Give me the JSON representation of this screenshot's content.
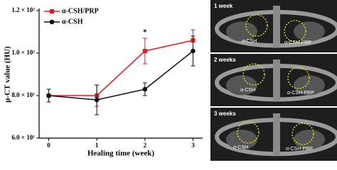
{
  "chart_data": {
    "type": "line",
    "xlabel": "Healing time (week)",
    "ylabel": "μ-CT value (HU)",
    "x": [
      0,
      1,
      2,
      3
    ],
    "xlim": [
      -0.2,
      3.2
    ],
    "xticks": [
      0,
      1,
      2,
      3
    ],
    "ylim": [
      60,
      120
    ],
    "yticks": [
      {
        "value": 60,
        "label": "6.0 × 10¹"
      },
      {
        "value": 80,
        "label": "8.0 × 10¹"
      },
      {
        "value": 100,
        "label": "1.0 × 10²"
      },
      {
        "value": 120,
        "label": "1.2 × 10²"
      }
    ],
    "series": [
      {
        "name": "α-CSH/PRP",
        "color": "#e8141c",
        "marker": "square",
        "values": [
          80,
          80,
          101,
          106
        ],
        "errors": [
          3,
          5,
          6,
          5
        ]
      },
      {
        "name": "α-CSH",
        "color": "#111111",
        "marker": "circle",
        "values": [
          80,
          78,
          83,
          101
        ],
        "errors": [
          3,
          7,
          3,
          7
        ]
      }
    ],
    "annotations": [
      "*"
    ],
    "legend": "upper left"
  },
  "images": [
    {
      "label": "1 week",
      "annotations": [
        "α-CSH",
        "α-CSH-PRP"
      ]
    },
    {
      "label": "2 weeks",
      "annotations": [
        "α-CSH",
        "α-CSH-PRP"
      ]
    },
    {
      "label": "3 weeks",
      "annotations": [
        "α-CSH",
        "α-CSH-PRP"
      ]
    }
  ]
}
